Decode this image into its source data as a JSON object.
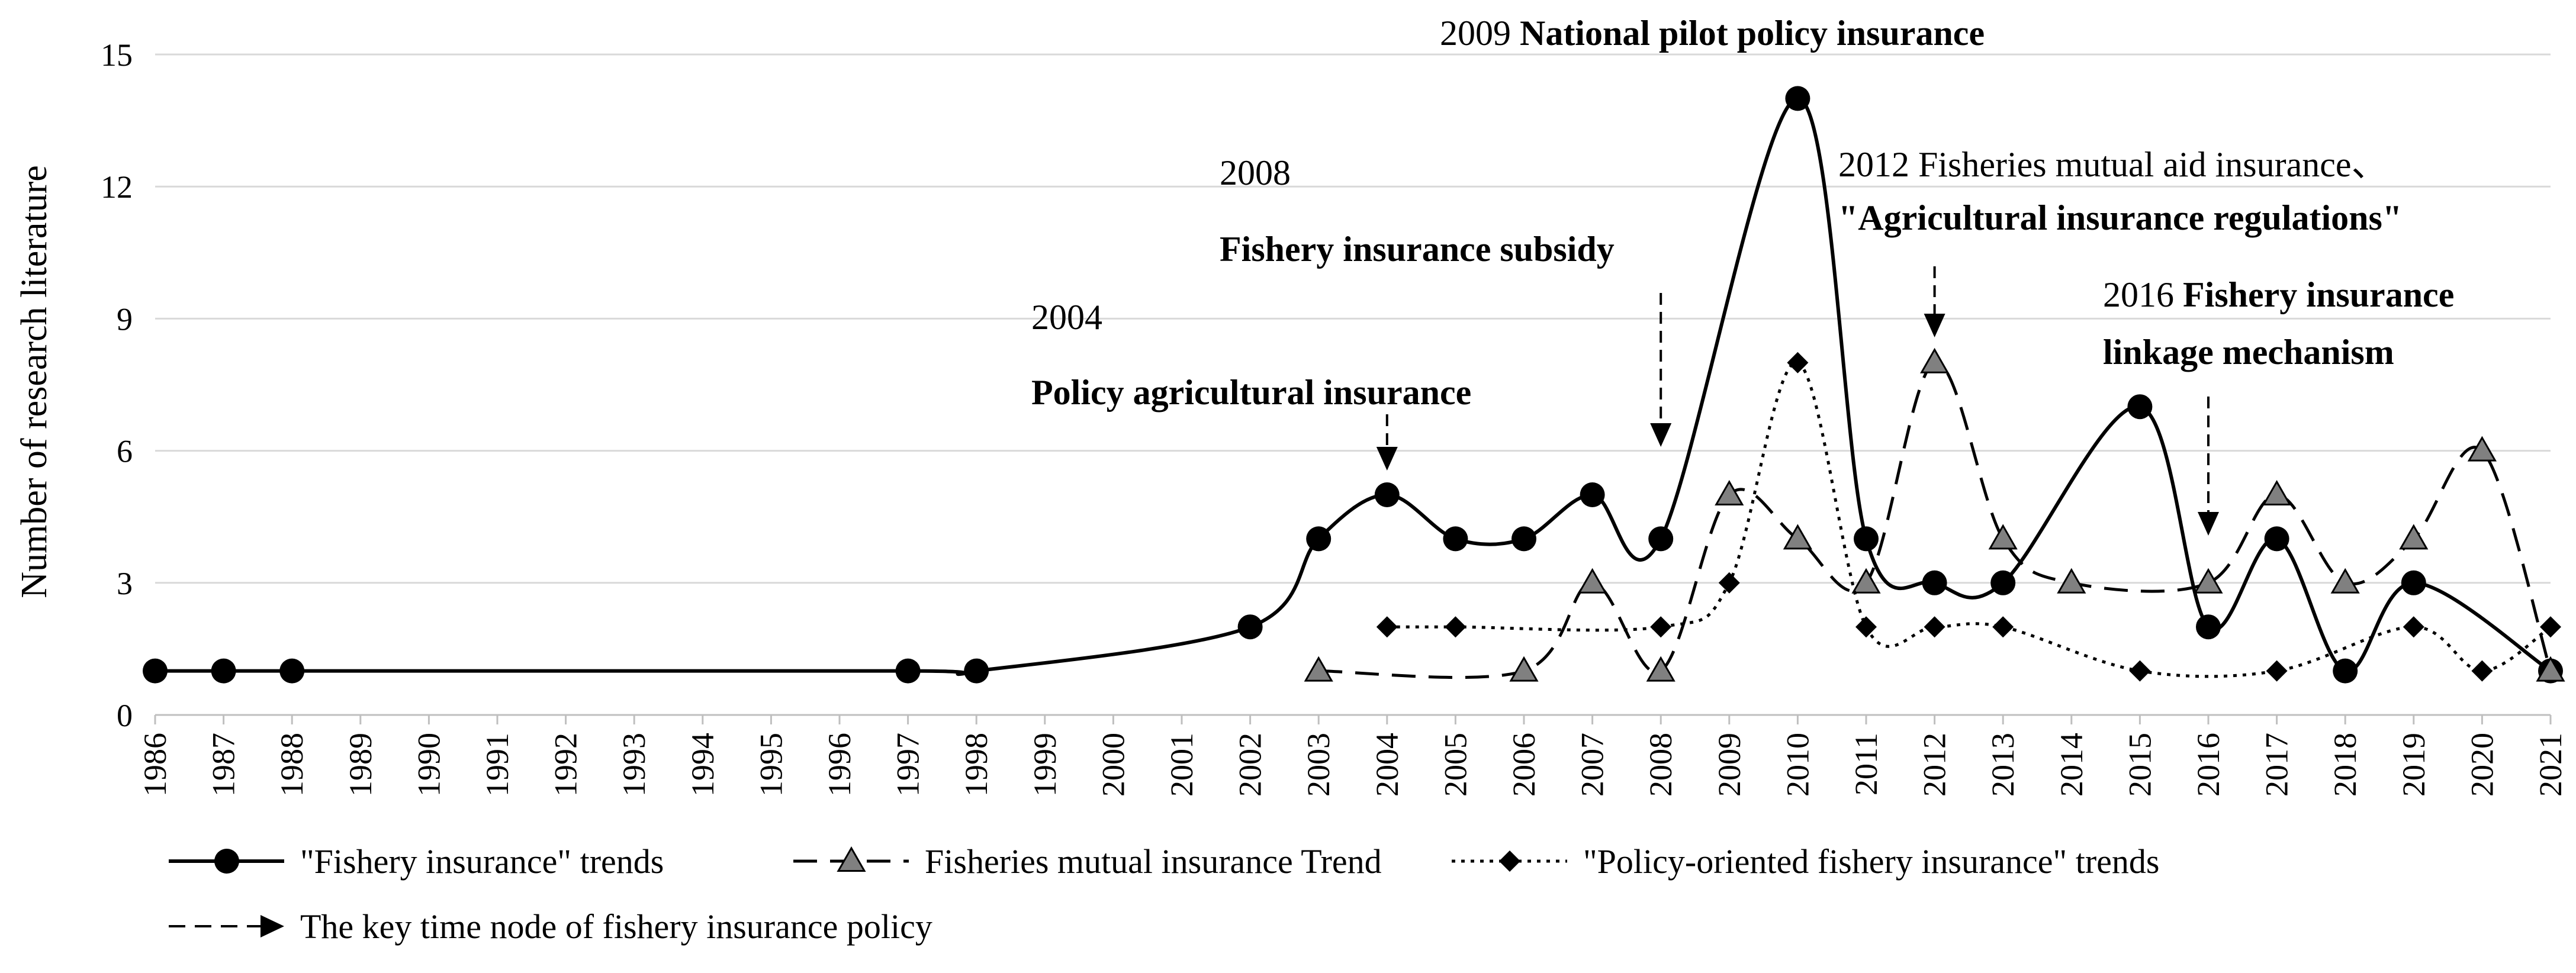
{
  "chart_data": {
    "type": "line",
    "title": "",
    "xlabel": "",
    "ylabel": "Number of research literature",
    "ylim": [
      0,
      15
    ],
    "yticks": [
      0,
      3,
      6,
      9,
      12,
      15
    ],
    "grid": true,
    "categories": [
      "1986",
      "1987",
      "1988",
      "1989",
      "1990",
      "1991",
      "1992",
      "1993",
      "1994",
      "1995",
      "1996",
      "1997",
      "1998",
      "1999",
      "2000",
      "2001",
      "2002",
      "2003",
      "2004",
      "2005",
      "2006",
      "2007",
      "2008",
      "2009",
      "2010",
      "2011",
      "2012",
      "2013",
      "2014",
      "2015",
      "2016",
      "2017",
      "2018",
      "2019",
      "2020",
      "2021"
    ],
    "series": [
      {
        "name": "\"Fishery insurance\" trends",
        "style": "solid",
        "marker": "circle",
        "color": "#000000",
        "points": [
          [
            1986,
            1
          ],
          [
            1987,
            1
          ],
          [
            1988,
            1
          ],
          [
            1997,
            1
          ],
          [
            1998,
            1
          ],
          [
            2002,
            2
          ],
          [
            2003,
            4
          ],
          [
            2004,
            5
          ],
          [
            2005,
            4
          ],
          [
            2006,
            4
          ],
          [
            2007,
            5
          ],
          [
            2008,
            4
          ],
          [
            2010,
            14
          ],
          [
            2011,
            4
          ],
          [
            2012,
            3
          ],
          [
            2013,
            3
          ],
          [
            2015,
            7
          ],
          [
            2016,
            2
          ],
          [
            2017,
            4
          ],
          [
            2018,
            1
          ],
          [
            2019,
            3
          ],
          [
            2021,
            1
          ]
        ]
      },
      {
        "name": "Fisheries mutual insurance Trend",
        "style": "dashed",
        "marker": "triangle",
        "color": "#808080",
        "points": [
          [
            2003,
            1
          ],
          [
            2006,
            1
          ],
          [
            2007,
            3
          ],
          [
            2008,
            1
          ],
          [
            2009,
            5
          ],
          [
            2010,
            4
          ],
          [
            2011,
            3
          ],
          [
            2012,
            8
          ],
          [
            2013,
            4
          ],
          [
            2014,
            3
          ],
          [
            2016,
            3
          ],
          [
            2017,
            5
          ],
          [
            2018,
            3
          ],
          [
            2019,
            4
          ],
          [
            2020,
            6
          ],
          [
            2021,
            1
          ]
        ]
      },
      {
        "name": "\"Policy-oriented fishery insurance\" trends",
        "style": "dotted",
        "marker": "diamond",
        "color": "#000000",
        "points": [
          [
            2004,
            2
          ],
          [
            2005,
            2
          ],
          [
            2008,
            2
          ],
          [
            2009,
            3
          ],
          [
            2010,
            8
          ],
          [
            2011,
            2
          ],
          [
            2012,
            2
          ],
          [
            2013,
            2
          ],
          [
            2015,
            1
          ],
          [
            2017,
            1
          ],
          [
            2019,
            2
          ],
          [
            2020,
            1
          ],
          [
            2021,
            2
          ]
        ]
      }
    ],
    "key_node_legend": "The key time node of fishery insurance policy",
    "annotations": [
      {
        "id": "a2004",
        "year_text": "2004",
        "bold_text": "Policy agricultural insurance",
        "arrow_x": 2004
      },
      {
        "id": "a2008",
        "year_text": "2008",
        "bold_text": "Fishery insurance subsidy",
        "arrow_x": 2008
      },
      {
        "id": "a2009",
        "year_text": "2009",
        "bold_text": "National pilot policy insurance"
      },
      {
        "id": "a2012",
        "line1": "2012 Fisheries mutual aid insurance、",
        "line2": "\"Agricultural insurance regulations\"",
        "arrow_x": 2012
      },
      {
        "id": "a2016",
        "year_text": "2016",
        "bold_line1": "Fishery insurance",
        "bold_line2": "linkage mechanism",
        "arrow_x": 2016
      }
    ]
  }
}
